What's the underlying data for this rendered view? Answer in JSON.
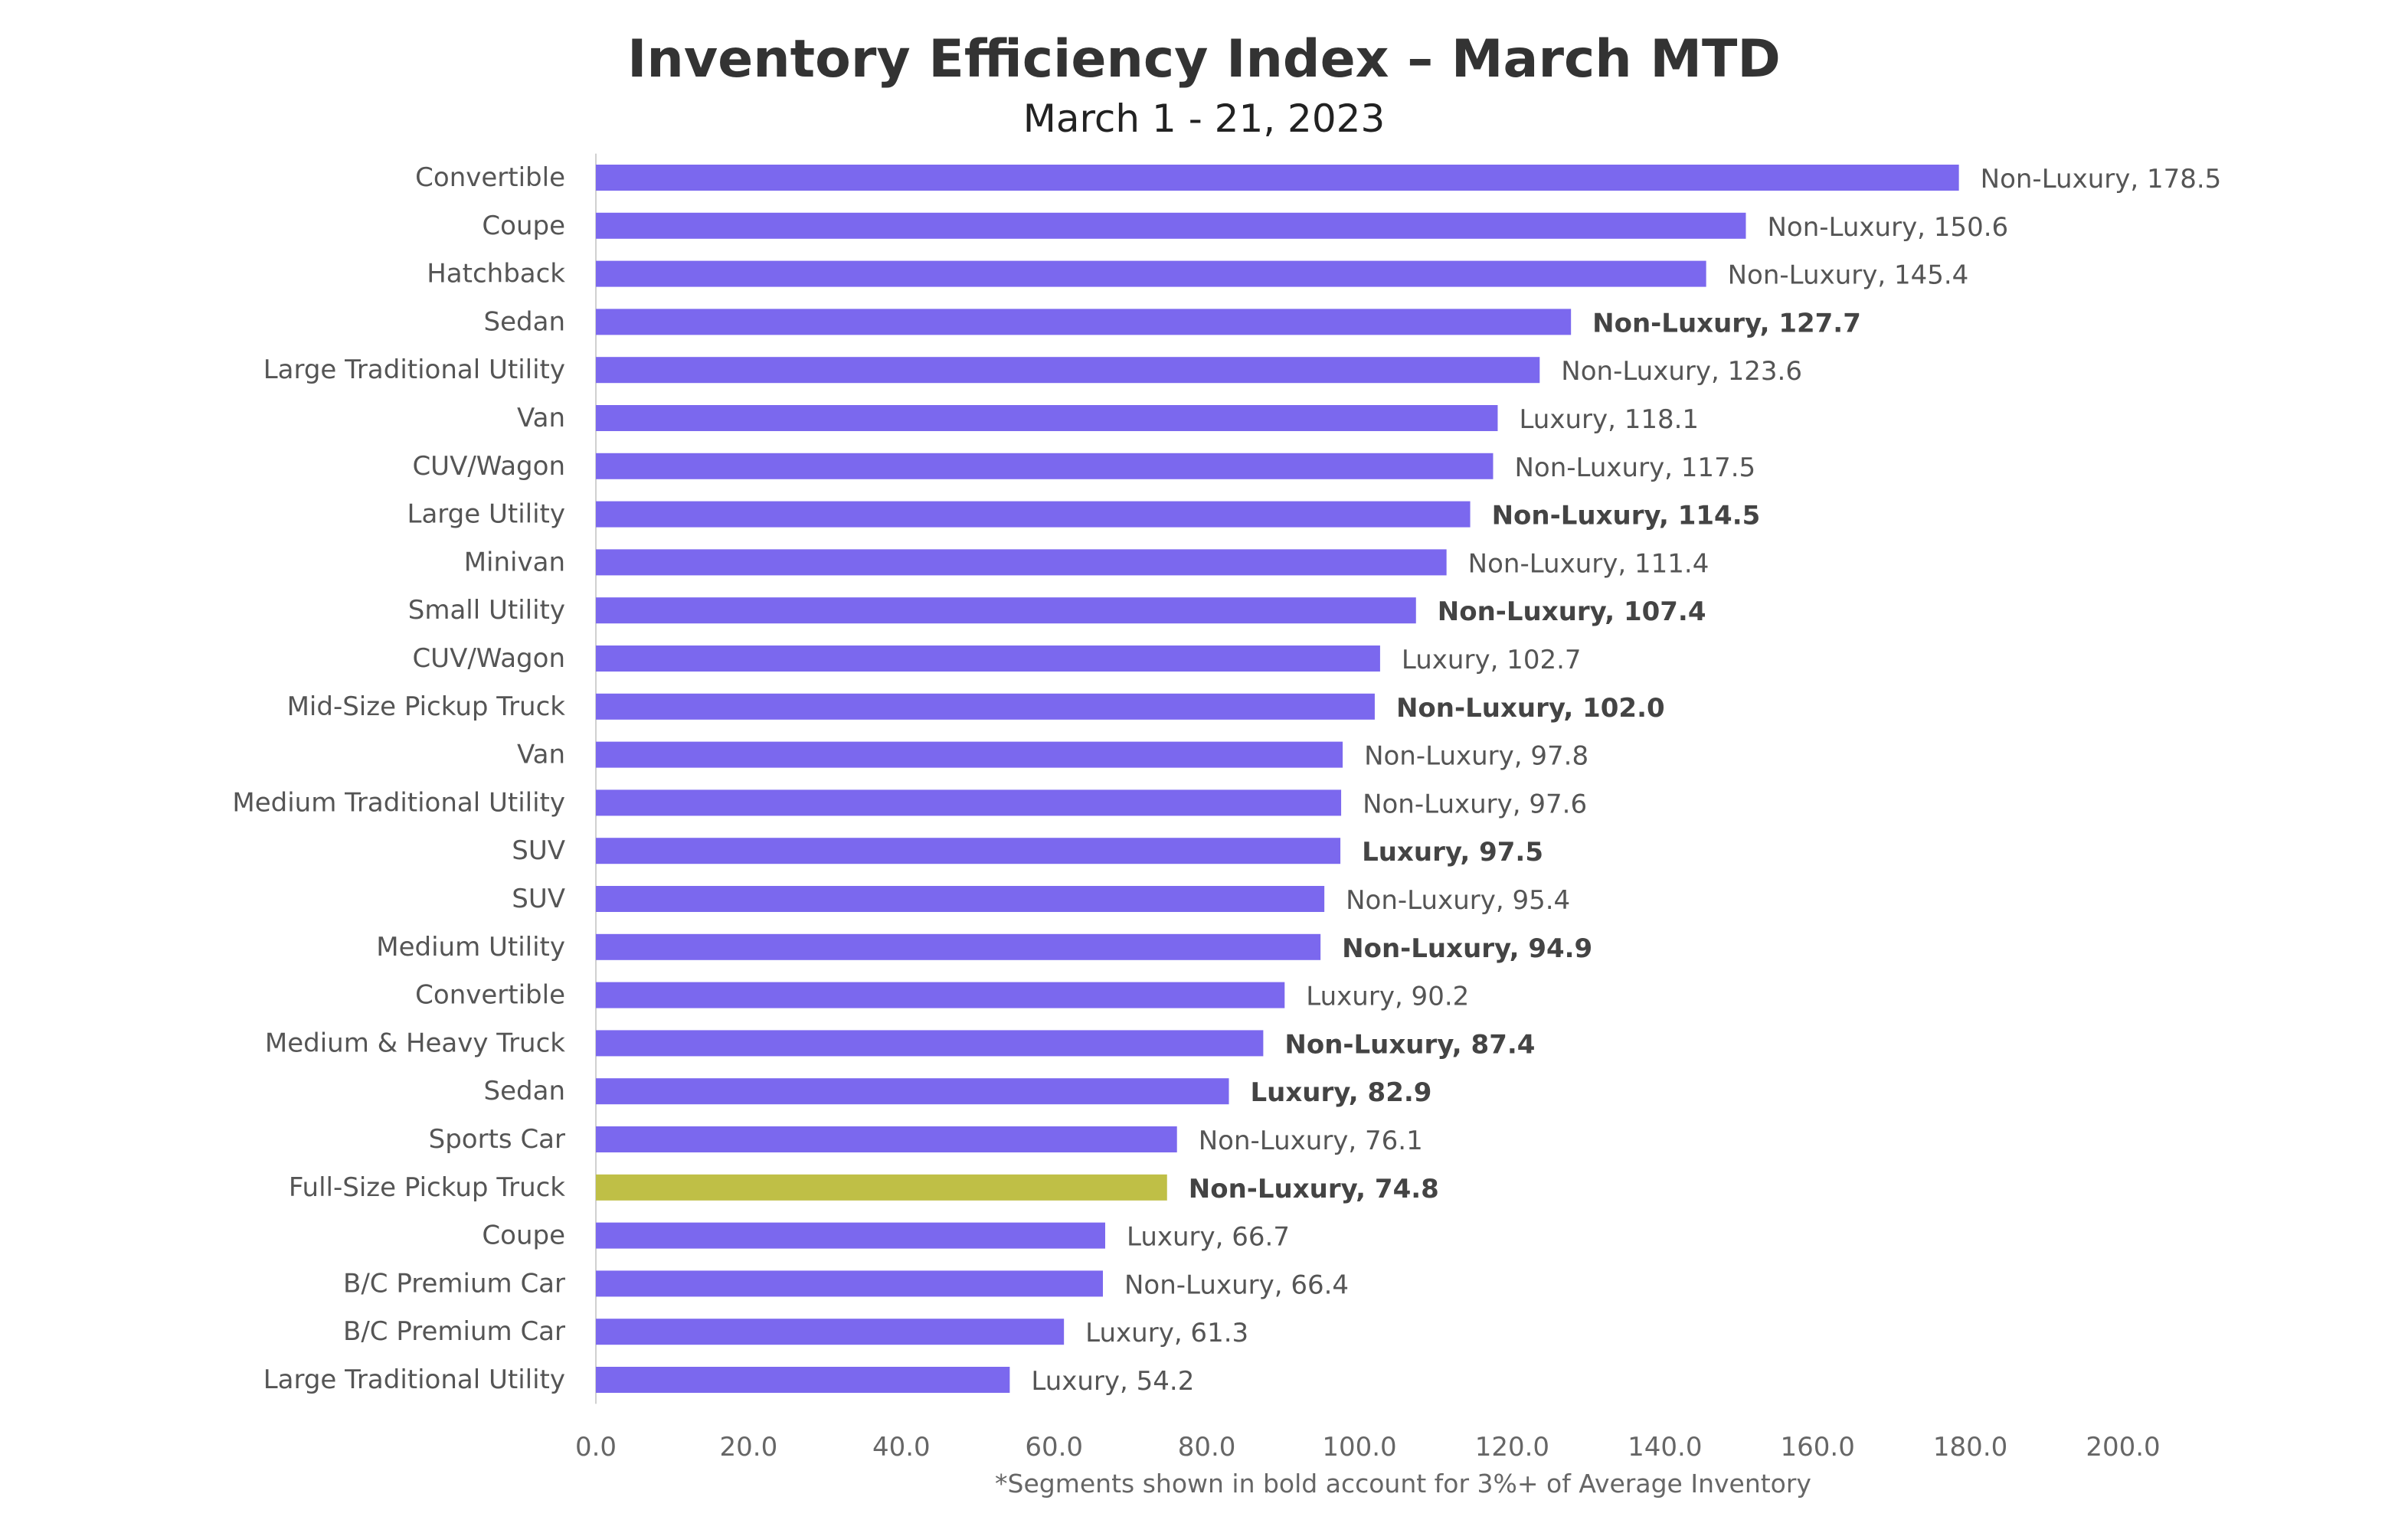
{
  "chart_data": {
    "type": "bar",
    "orientation": "horizontal",
    "title": "Inventory Efficiency Index – March MTD",
    "subtitle": "March 1 - 21, 2023",
    "footnote": "*Segments shown in bold account for 3%+ of Average Inventory",
    "xlim": [
      0,
      200
    ],
    "x_ticks": [
      "0.0",
      "20.0",
      "40.0",
      "60.0",
      "80.0",
      "100.0",
      "120.0",
      "140.0",
      "160.0",
      "180.0",
      "200.0"
    ],
    "grid": false,
    "colors": {
      "default": "#7B68EE",
      "highlight": "#BFBF46"
    },
    "categories": [
      "Convertible",
      "Coupe",
      "Hatchback",
      "Sedan",
      "Large Traditional Utility",
      "Van",
      "CUV/Wagon",
      "Large Utility",
      "Minivan",
      "Small Utility",
      "CUV/Wagon",
      "Mid-Size Pickup Truck",
      "Van",
      "Medium Traditional Utility",
      "SUV",
      "SUV",
      "Medium Utility",
      "Convertible",
      "Medium & Heavy Truck",
      "Sedan",
      "Sports Car",
      "Full-Size Pickup Truck",
      "Coupe",
      "B/C Premium Car",
      "B/C Premium Car",
      "Large Traditional Utility"
    ],
    "values": [
      178.5,
      150.6,
      145.4,
      127.7,
      123.6,
      118.1,
      117.5,
      114.5,
      111.4,
      107.4,
      102.7,
      102.0,
      97.8,
      97.6,
      97.5,
      95.4,
      94.9,
      90.2,
      87.4,
      82.9,
      76.1,
      74.8,
      66.7,
      66.4,
      61.3,
      54.2
    ],
    "data_labels": [
      "Non-Luxury, 178.5",
      "Non-Luxury, 150.6",
      "Non-Luxury, 145.4",
      "Non-Luxury, 127.7",
      "Non-Luxury, 123.6",
      "Luxury, 118.1",
      "Non-Luxury, 117.5",
      "Non-Luxury, 114.5",
      "Non-Luxury, 111.4",
      "Non-Luxury, 107.4",
      "Luxury, 102.7",
      "Non-Luxury, 102.0",
      "Non-Luxury, 97.8",
      "Non-Luxury, 97.6",
      "Luxury, 97.5",
      "Non-Luxury, 95.4",
      "Non-Luxury, 94.9",
      "Luxury, 90.2",
      "Non-Luxury, 87.4",
      "Luxury, 82.9",
      "Non-Luxury, 76.1",
      "Non-Luxury, 74.8",
      "Luxury, 66.7",
      "Non-Luxury, 66.4",
      "Luxury, 61.3",
      "Luxury, 54.2"
    ],
    "bold_labels": [
      false,
      false,
      false,
      true,
      false,
      false,
      false,
      true,
      false,
      true,
      false,
      true,
      false,
      false,
      true,
      false,
      true,
      false,
      true,
      true,
      false,
      true,
      false,
      false,
      false,
      false
    ],
    "highlight": [
      false,
      false,
      false,
      false,
      false,
      false,
      false,
      false,
      false,
      false,
      false,
      false,
      false,
      false,
      false,
      false,
      false,
      false,
      false,
      false,
      false,
      true,
      false,
      false,
      false,
      false
    ]
  }
}
